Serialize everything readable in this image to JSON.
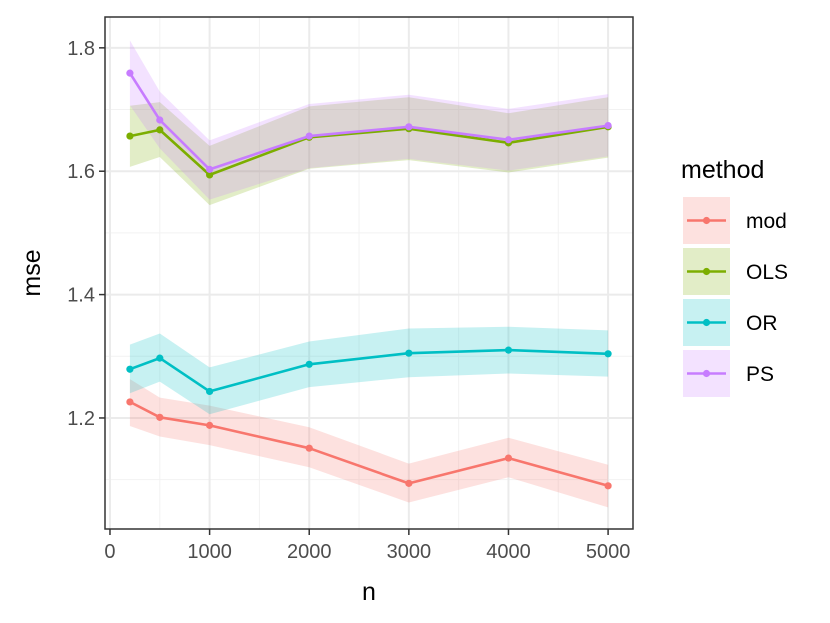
{
  "chart_data": {
    "type": "line",
    "xlabel": "n",
    "ylabel": "mse",
    "xlim": [
      -50,
      5250
    ],
    "ylim": [
      1.02,
      1.85
    ],
    "x_ticks": [
      0,
      1000,
      2000,
      3000,
      4000,
      5000
    ],
    "x_tick_labels": [
      "0",
      "1000",
      "2000",
      "3000",
      "4000",
      "5000"
    ],
    "y_ticks": [
      1.2,
      1.4,
      1.6,
      1.8
    ],
    "y_tick_labels": [
      "1.2",
      "1.4",
      "1.6",
      "1.8"
    ],
    "grid": true,
    "legend": {
      "title": "method",
      "position": "right"
    },
    "x": [
      200,
      500,
      1000,
      2000,
      3000,
      4000,
      5000
    ],
    "series": [
      {
        "name": "mod",
        "color": "#F8766D",
        "values": [
          1.226,
          1.201,
          1.188,
          1.151,
          1.094,
          1.135,
          1.09
        ],
        "lower": [
          1.187,
          1.17,
          1.156,
          1.12,
          1.063,
          1.104,
          1.055
        ],
        "upper": [
          1.263,
          1.233,
          1.22,
          1.185,
          1.126,
          1.168,
          1.124
        ]
      },
      {
        "name": "OLS",
        "color": "#7CAE00",
        "values": [
          1.657,
          1.667,
          1.594,
          1.655,
          1.669,
          1.646,
          1.672
        ],
        "lower": [
          1.607,
          1.623,
          1.545,
          1.604,
          1.618,
          1.598,
          1.622
        ],
        "upper": [
          1.706,
          1.712,
          1.641,
          1.705,
          1.72,
          1.694,
          1.72
        ]
      },
      {
        "name": "OR",
        "color": "#00BFC4",
        "values": [
          1.279,
          1.297,
          1.243,
          1.287,
          1.305,
          1.31,
          1.304
        ],
        "lower": [
          1.24,
          1.259,
          1.206,
          1.25,
          1.266,
          1.272,
          1.267
        ],
        "upper": [
          1.319,
          1.337,
          1.282,
          1.324,
          1.345,
          1.348,
          1.342
        ]
      },
      {
        "name": "PS",
        "color": "#C77CFF",
        "values": [
          1.759,
          1.683,
          1.603,
          1.657,
          1.672,
          1.651,
          1.674
        ],
        "lower": [
          1.707,
          1.637,
          1.554,
          1.605,
          1.62,
          1.601,
          1.624
        ],
        "upper": [
          1.812,
          1.729,
          1.65,
          1.709,
          1.724,
          1.701,
          1.725
        ]
      }
    ]
  }
}
